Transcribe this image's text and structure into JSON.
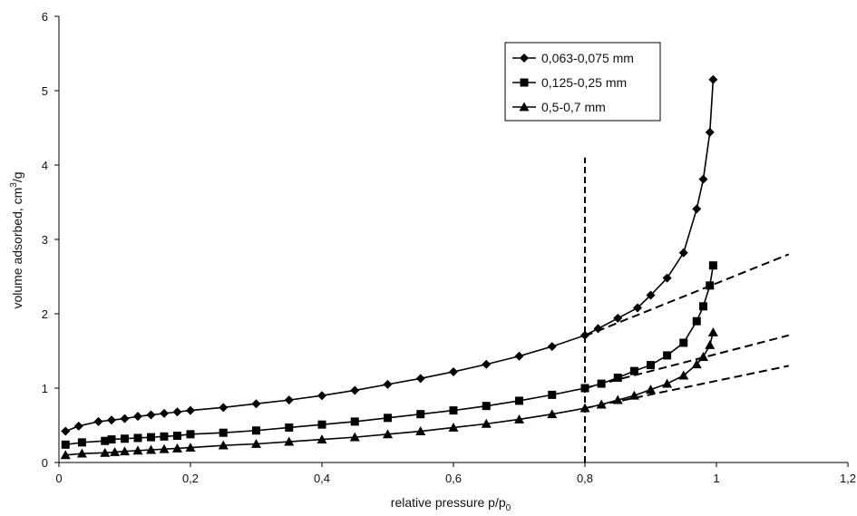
{
  "chart_data": {
    "type": "line",
    "xlabel_main": "relative pressure  p/p",
    "xlabel_sub": "0",
    "ylabel_main": "volume adsorbed, cm",
    "ylabel_sup": "3",
    "ylabel_tail": "/g",
    "xlim": [
      0,
      1.2
    ],
    "ylim": [
      0,
      6
    ],
    "x_ticks": [
      0,
      0.2,
      0.4,
      0.6,
      0.8,
      1,
      1.2
    ],
    "x_tick_labels": [
      "0",
      "0,2",
      "0,4",
      "0,6",
      "0,8",
      "1",
      "1,2"
    ],
    "y_ticks": [
      0,
      1,
      2,
      3,
      4,
      5,
      6
    ],
    "y_tick_labels": [
      "0",
      "1",
      "2",
      "3",
      "4",
      "5",
      "6"
    ],
    "grid": false,
    "legend_position": "top-right",
    "series": [
      {
        "name": "0,063-0,075 mm",
        "marker": "diamond",
        "color": "#000000",
        "x": [
          0.01,
          0.03,
          0.06,
          0.08,
          0.1,
          0.12,
          0.14,
          0.16,
          0.18,
          0.2,
          0.25,
          0.3,
          0.35,
          0.4,
          0.45,
          0.5,
          0.55,
          0.6,
          0.65,
          0.7,
          0.75,
          0.8,
          0.82,
          0.85,
          0.88,
          0.9,
          0.925,
          0.95,
          0.97,
          0.98,
          0.99,
          0.995
        ],
        "y": [
          0.42,
          0.49,
          0.55,
          0.57,
          0.59,
          0.62,
          0.64,
          0.66,
          0.68,
          0.7,
          0.74,
          0.79,
          0.84,
          0.9,
          0.97,
          1.05,
          1.13,
          1.22,
          1.32,
          1.43,
          1.56,
          1.71,
          1.8,
          1.94,
          2.08,
          2.25,
          2.48,
          2.82,
          3.41,
          3.81,
          4.44,
          5.15
        ]
      },
      {
        "name": "0,125-0,25 mm",
        "marker": "square",
        "color": "#000000",
        "x": [
          0.01,
          0.035,
          0.07,
          0.08,
          0.1,
          0.12,
          0.14,
          0.16,
          0.18,
          0.2,
          0.25,
          0.3,
          0.35,
          0.4,
          0.45,
          0.5,
          0.55,
          0.6,
          0.65,
          0.7,
          0.75,
          0.8,
          0.825,
          0.85,
          0.875,
          0.9,
          0.925,
          0.95,
          0.97,
          0.98,
          0.99,
          0.995
        ],
        "y": [
          0.24,
          0.27,
          0.29,
          0.31,
          0.32,
          0.33,
          0.34,
          0.35,
          0.36,
          0.38,
          0.4,
          0.43,
          0.47,
          0.51,
          0.55,
          0.6,
          0.65,
          0.7,
          0.76,
          0.83,
          0.91,
          1.0,
          1.06,
          1.14,
          1.23,
          1.31,
          1.44,
          1.61,
          1.9,
          2.1,
          2.38,
          2.65
        ]
      },
      {
        "name": "0,5-0,7 mm",
        "marker": "triangle",
        "color": "#000000",
        "x": [
          0.01,
          0.035,
          0.07,
          0.085,
          0.1,
          0.12,
          0.14,
          0.16,
          0.18,
          0.2,
          0.25,
          0.3,
          0.35,
          0.4,
          0.45,
          0.5,
          0.55,
          0.6,
          0.65,
          0.7,
          0.75,
          0.8,
          0.825,
          0.85,
          0.875,
          0.9,
          0.925,
          0.95,
          0.97,
          0.98,
          0.99,
          0.995
        ],
        "y": [
          0.1,
          0.12,
          0.13,
          0.14,
          0.15,
          0.16,
          0.17,
          0.18,
          0.19,
          0.2,
          0.23,
          0.25,
          0.28,
          0.31,
          0.34,
          0.38,
          0.42,
          0.47,
          0.52,
          0.58,
          0.65,
          0.73,
          0.78,
          0.84,
          0.9,
          0.98,
          1.06,
          1.17,
          1.32,
          1.42,
          1.58,
          1.75
        ]
      }
    ],
    "reference_lines": [
      {
        "kind": "vertical",
        "x": 0.8,
        "y_range": [
          0,
          4.1
        ],
        "style": "dashed"
      },
      {
        "kind": "segment",
        "from": [
          0.8,
          1.7
        ],
        "to": [
          1.11,
          2.8
        ],
        "style": "dashed"
      },
      {
        "kind": "segment",
        "from": [
          0.8,
          1.0
        ],
        "to": [
          1.11,
          1.71
        ],
        "style": "dashed"
      },
      {
        "kind": "segment",
        "from": [
          0.8,
          0.73
        ],
        "to": [
          1.11,
          1.3
        ],
        "style": "dashed"
      }
    ]
  }
}
